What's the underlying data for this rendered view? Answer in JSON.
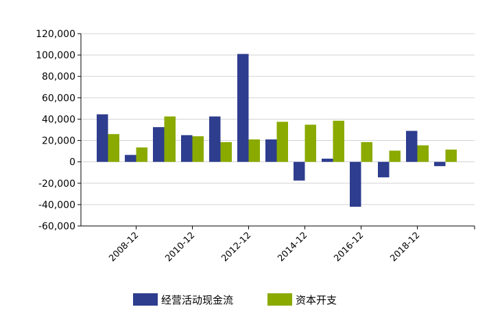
{
  "chart_data": {
    "type": "bar",
    "categories": [
      "2007-12",
      "2008-12",
      "2009-12",
      "2010-12",
      "2011-12",
      "2012-12",
      "2013-12",
      "2014-12",
      "2015-12",
      "2016-12",
      "2017-12",
      "2018-12",
      "2019-12"
    ],
    "x_tick_labels": [
      "2008-12",
      "2010-12",
      "2012-12",
      "2014-12",
      "2016-12",
      "2018-12"
    ],
    "series": [
      {
        "name": "经营活动现金流",
        "color": "#2E3D8E",
        "values": [
          44500,
          6500,
          32500,
          25000,
          42500,
          101000,
          21000,
          -17500,
          3000,
          -42000,
          -14500,
          29000,
          -4000
        ]
      },
      {
        "name": "资本开支",
        "color": "#8AAA00",
        "values": [
          26000,
          13500,
          42500,
          24000,
          18500,
          21000,
          37500,
          34800,
          38500,
          18500,
          10500,
          15500,
          11500
        ]
      }
    ],
    "y_ticks": [
      "120,000",
      "100,000",
      "80,000",
      "60,000",
      "40,000",
      "20,000",
      "0",
      "-20,000",
      "-40,000",
      "-60,000"
    ],
    "ylim": [
      -60000,
      120000
    ],
    "grid": true,
    "legend_position": "bottom"
  }
}
